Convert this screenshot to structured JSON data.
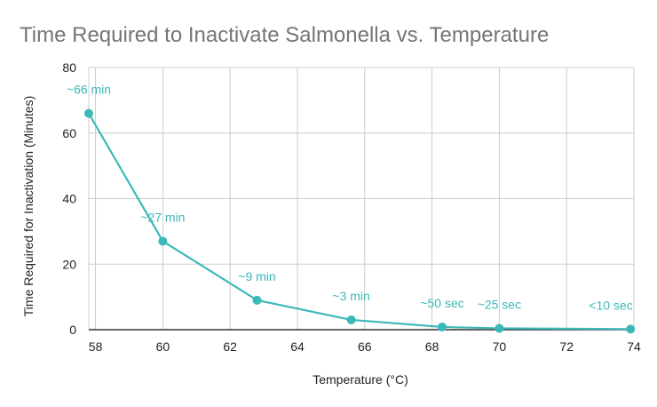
{
  "chart_data": {
    "type": "line",
    "title": "Time Required to Inactivate Salmonella vs. Temperature",
    "xlabel": "Temperature (°C)",
    "ylabel": "Time Required for Inactivation (Minutes)",
    "xlim": [
      57.8,
      74
    ],
    "ylim": [
      0,
      80
    ],
    "x_ticks": [
      58,
      60,
      62,
      64,
      66,
      68,
      70,
      72,
      74
    ],
    "y_ticks": [
      0,
      20,
      40,
      60,
      80
    ],
    "grid": true,
    "series": [
      {
        "name": "Inactivation time",
        "color": "#3db8b9",
        "x": [
          57.8,
          60,
          62.8,
          65.6,
          68.3,
          70,
          73.9
        ],
        "y": [
          66,
          27,
          9,
          3,
          0.83,
          0.42,
          0.17
        ],
        "labels": [
          "~66 min",
          "~27 min",
          "~9 min",
          "~3 min",
          "~50 sec",
          "~25 sec",
          "<10 sec"
        ]
      }
    ]
  },
  "colors": {
    "title": "#757575",
    "axis_text": "#222222",
    "grid": "#cccccc",
    "baseline": "#333333",
    "label": "#3db8b9"
  }
}
